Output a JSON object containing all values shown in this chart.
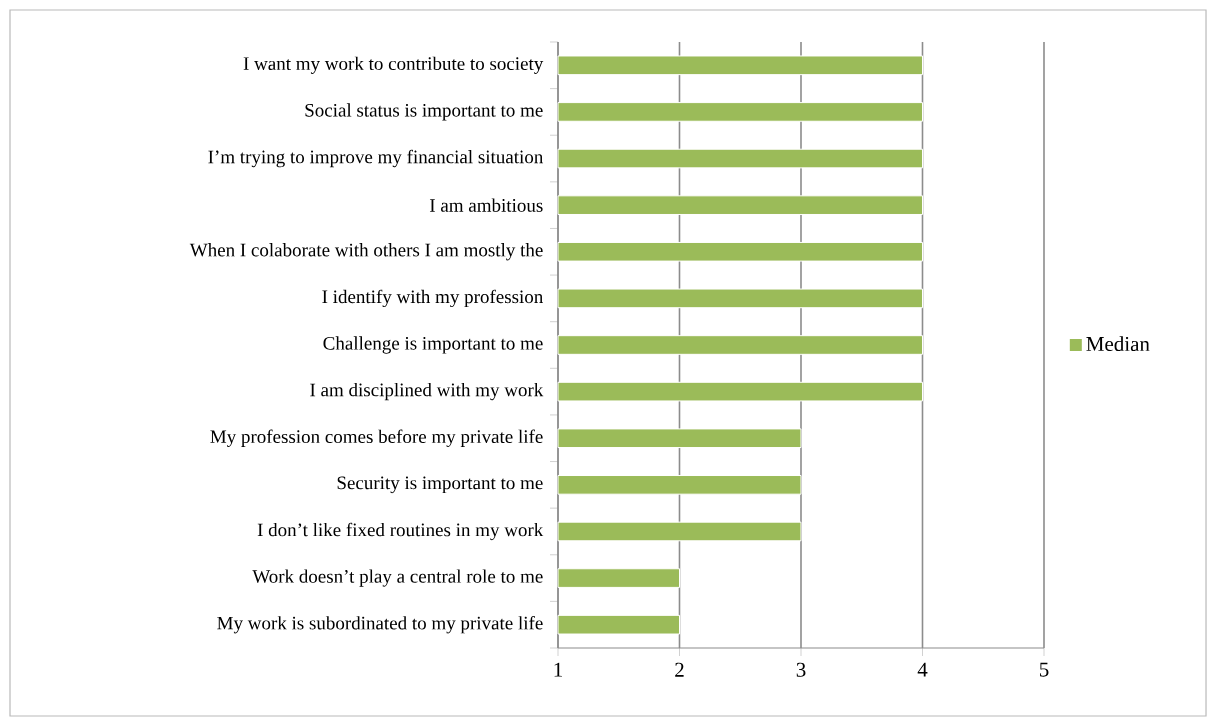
{
  "chart_data": {
    "type": "bar",
    "orientation": "horizontal",
    "categories": [
      "I want my work to contribute to society",
      "Social status is important to me",
      "I’m trying to improve my financial situation",
      "I am ambitious",
      "When I colaborate with others I am mostly the",
      "I identify with my profession",
      "Challenge is important to me",
      "I am disciplined with my work",
      "My profession comes before my private life",
      "Security is important to me",
      "I don’t like fixed routines in my work",
      "Work doesn’t play a central role to me",
      "My work is subordinated to my private life"
    ],
    "series": [
      {
        "name": "Median",
        "color": "#9bbb59",
        "values": [
          4,
          4,
          4,
          4,
          4,
          4,
          4,
          4,
          3,
          3,
          3,
          2,
          2
        ]
      }
    ],
    "xlim": [
      1,
      5
    ],
    "xticks": [
      1,
      2,
      3,
      4,
      5
    ],
    "grid": "x",
    "legend": "right"
  }
}
